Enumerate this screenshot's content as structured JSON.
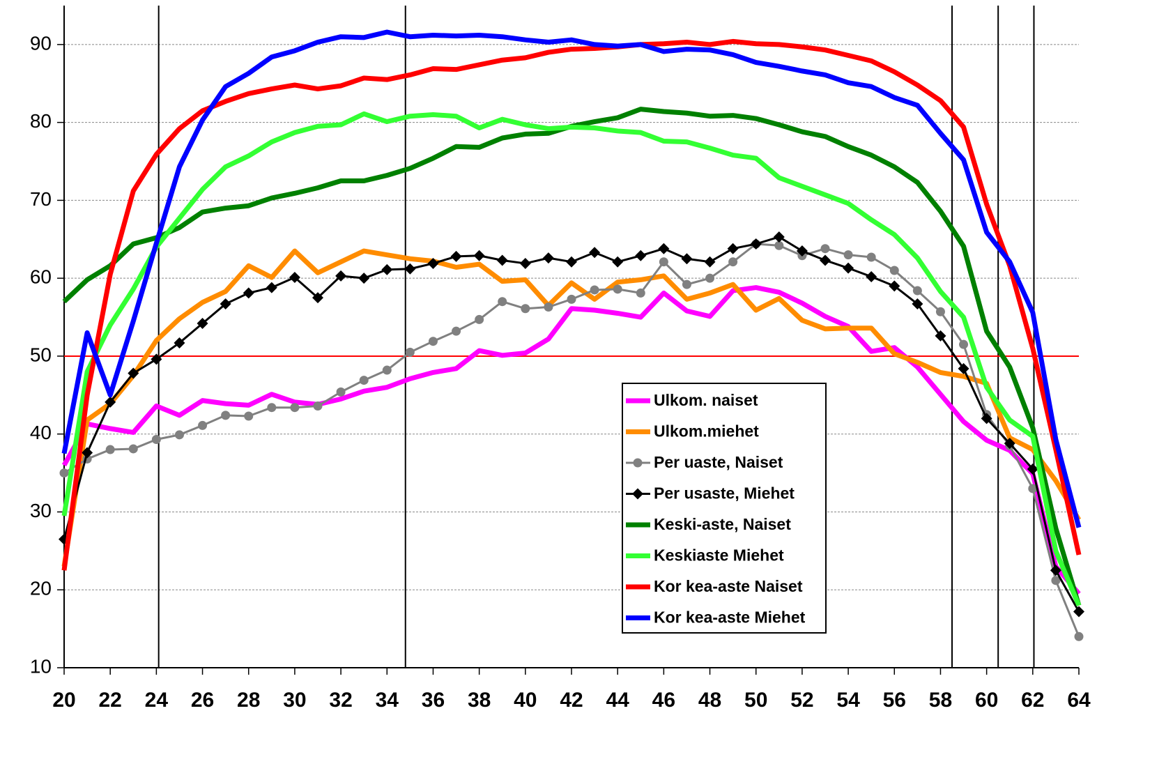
{
  "chart_data": {
    "type": "line",
    "x": [
      20,
      21,
      22,
      23,
      24,
      25,
      26,
      27,
      28,
      29,
      30,
      31,
      32,
      33,
      34,
      35,
      36,
      37,
      38,
      39,
      40,
      41,
      42,
      43,
      44,
      45,
      46,
      47,
      48,
      49,
      50,
      51,
      52,
      53,
      54,
      55,
      56,
      57,
      58,
      59,
      60,
      61,
      62,
      63,
      64
    ],
    "xlim": [
      20,
      64
    ],
    "xticks": [
      20,
      22,
      24,
      26,
      28,
      30,
      32,
      34,
      36,
      38,
      40,
      42,
      44,
      46,
      48,
      50,
      52,
      54,
      56,
      58,
      60,
      62,
      64
    ],
    "ylim": [
      10,
      95
    ],
    "yticks": [
      10,
      20,
      30,
      40,
      50,
      60,
      70,
      80,
      90
    ],
    "grid": true,
    "hline": {
      "value": 50,
      "color": "#ff0000"
    },
    "vlines": [
      24.1,
      34.8,
      58.5,
      60.5,
      62.05
    ],
    "series": [
      {
        "name": "Ulkom. naiset",
        "color": "#ff00ff",
        "marker": null,
        "values": [
          36,
          41.3,
          40.7,
          40.2,
          43.6,
          42.4,
          44.3,
          43.9,
          43.7,
          45.1,
          44.1,
          43.8,
          44.5,
          45.5,
          46,
          47.1,
          47.9,
          48.4,
          50.7,
          50.1,
          50.4,
          52.2,
          56.1,
          55.9,
          55.5,
          55,
          58.1,
          55.8,
          55.1,
          58.4,
          58.8,
          58.2,
          56.8,
          55.1,
          53.8,
          50.6,
          51.1,
          48.6,
          45.1,
          41.6,
          39.2,
          37.9,
          34.9,
          23,
          19.5
        ]
      },
      {
        "name": "Ulkom.miehet",
        "color": "#ff8c00",
        "marker": null,
        "values": [
          23,
          41.8,
          43.9,
          47.5,
          52,
          54.8,
          56.9,
          58.3,
          61.6,
          60.1,
          63.5,
          60.7,
          62.1,
          63.5,
          63,
          62.5,
          62.2,
          61.4,
          61.8,
          59.6,
          59.8,
          56.5,
          59.4,
          57.3,
          59.5,
          59.8,
          60.3,
          57.3,
          58.1,
          59.2,
          55.9,
          57.4,
          54.6,
          53.5,
          53.6,
          53.6,
          50.3,
          49.2,
          47.9,
          47.4,
          46.5,
          39.5,
          38,
          34,
          29
        ]
      },
      {
        "name": "Per uaste, Naiset",
        "color": "#808080",
        "marker": "circle",
        "values": [
          35,
          36.8,
          38,
          38.1,
          39.3,
          39.9,
          41.1,
          42.4,
          42.3,
          43.4,
          43.4,
          43.6,
          45.4,
          46.9,
          48.2,
          50.5,
          51.9,
          53.2,
          54.7,
          57,
          56.1,
          56.3,
          57.3,
          58.5,
          58.6,
          58.1,
          62.1,
          59.2,
          60,
          62.1,
          64.4,
          64.2,
          62.9,
          63.8,
          63,
          62.7,
          61,
          58.4,
          55.7,
          51.5,
          42.5,
          38.5,
          33,
          21.2,
          14
        ]
      },
      {
        "name": "Per usaste, Miehet",
        "color": "#000000",
        "marker": "diamond",
        "values": [
          26.5,
          37.6,
          44.1,
          47.8,
          49.6,
          51.7,
          54.2,
          56.7,
          58.1,
          58.8,
          60.1,
          57.5,
          60.3,
          60,
          61.1,
          61.2,
          61.9,
          62.8,
          62.9,
          62.3,
          61.9,
          62.6,
          62.1,
          63.3,
          62.1,
          62.9,
          63.8,
          62.5,
          62.1,
          63.8,
          64.4,
          65.3,
          63.5,
          62.3,
          61.3,
          60.2,
          59,
          56.7,
          52.6,
          48.4,
          42,
          38.8,
          35.5,
          22.5,
          17.2
        ]
      },
      {
        "name": "Keski-aste, Naiset",
        "color": "#008000",
        "marker": null,
        "values": [
          57,
          59.8,
          61.6,
          64.4,
          65.2,
          66.5,
          68.5,
          69,
          69.3,
          70.3,
          70.9,
          71.6,
          72.5,
          72.5,
          73.2,
          74.1,
          75.4,
          76.9,
          76.8,
          78,
          78.5,
          78.6,
          79.5,
          80.1,
          80.6,
          81.7,
          81.4,
          81.2,
          80.8,
          80.9,
          80.5,
          79.7,
          78.8,
          78.2,
          76.9,
          75.8,
          74.3,
          72.3,
          68.6,
          64.1,
          53.2,
          48.6,
          40.8,
          27.9,
          18
        ]
      },
      {
        "name": "Keskiaste Miehet",
        "color": "#33ff33",
        "marker": null,
        "values": [
          29.5,
          48,
          54,
          58.6,
          64,
          67.7,
          71.4,
          74.3,
          75.7,
          77.5,
          78.7,
          79.5,
          79.7,
          81.1,
          80.1,
          80.8,
          81,
          80.8,
          79.3,
          80.4,
          79.7,
          79.2,
          79.4,
          79.3,
          78.9,
          78.7,
          77.6,
          77.5,
          76.7,
          75.8,
          75.4,
          72.9,
          71.8,
          70.7,
          69.6,
          67.5,
          65.6,
          62.6,
          58.3,
          55,
          46,
          41.8,
          39.7,
          25,
          18
        ]
      },
      {
        "name": "Kor kea-aste Naiset",
        "color": "#ff0000",
        "marker": null,
        "values": [
          22.5,
          45,
          60.5,
          71.2,
          75.9,
          79.2,
          81.5,
          82.7,
          83.7,
          84.3,
          84.8,
          84.3,
          84.7,
          85.7,
          85.5,
          86.1,
          86.9,
          86.8,
          87.4,
          88,
          88.3,
          89,
          89.4,
          89.5,
          89.7,
          90,
          90.1,
          90.3,
          90,
          90.4,
          90.1,
          90,
          89.7,
          89.3,
          88.6,
          87.9,
          86.5,
          84.8,
          82.8,
          79.4,
          69.5,
          61.6,
          51,
          38,
          24.5
        ]
      },
      {
        "name": "Kor kea-aste Miehet",
        "color": "#0000ff",
        "marker": null,
        "values": [
          37.5,
          53,
          45,
          54.5,
          64.5,
          74.3,
          80.3,
          84.6,
          86.3,
          88.4,
          89.2,
          90.3,
          91,
          90.9,
          91.6,
          91,
          91.2,
          91.1,
          91.2,
          91,
          90.6,
          90.3,
          90.6,
          90,
          89.8,
          90,
          89.1,
          89.4,
          89.3,
          88.7,
          87.7,
          87.2,
          86.6,
          86.1,
          85.1,
          84.6,
          83.2,
          82.2,
          78.6,
          75.2,
          65.9,
          62.1,
          55.6,
          39.3,
          28
        ]
      }
    ]
  }
}
